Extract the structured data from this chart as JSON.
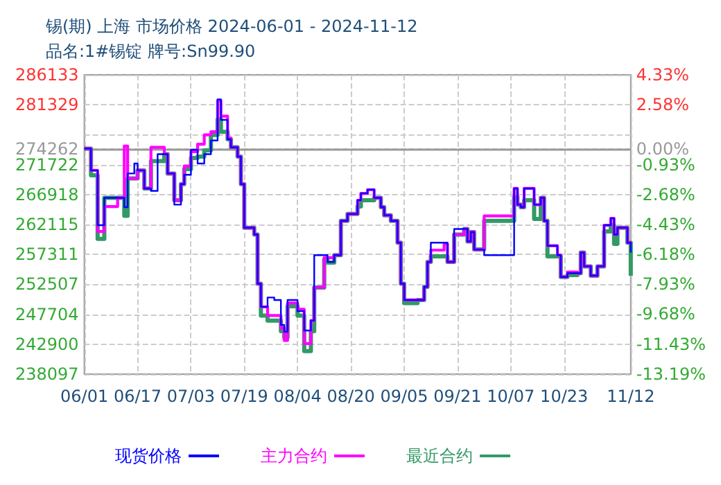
{
  "chart_data": {
    "type": "step",
    "title": "锡(期) 上海 市场价格 2024-06-01 - 2024-11-12",
    "subtitle": "品名:1#锡锭 牌号:Sn99.90",
    "x": [
      "2024-06-01",
      "2024-06-03",
      "2024-06-05",
      "2024-06-07",
      "2024-06-11",
      "2024-06-13",
      "2024-06-14",
      "2024-06-16",
      "2024-06-17",
      "2024-06-19",
      "2024-06-21",
      "2024-06-23",
      "2024-06-25",
      "2024-06-26",
      "2024-06-28",
      "2024-06-30",
      "2024-07-01",
      "2024-07-03",
      "2024-07-05",
      "2024-07-07",
      "2024-07-09",
      "2024-07-11",
      "2024-07-12",
      "2024-07-14",
      "2024-07-15",
      "2024-07-17",
      "2024-07-18",
      "2024-07-19",
      "2024-07-22",
      "2024-07-23",
      "2024-07-24",
      "2024-07-26",
      "2024-07-28",
      "2024-07-30",
      "2024-07-31",
      "2024-08-01",
      "2024-08-04",
      "2024-08-06",
      "2024-08-08",
      "2024-08-09",
      "2024-08-12",
      "2024-08-13",
      "2024-08-15",
      "2024-08-17",
      "2024-08-19",
      "2024-08-22",
      "2024-08-23",
      "2024-08-25",
      "2024-08-27",
      "2024-08-29",
      "2024-08-30",
      "2024-09-01",
      "2024-09-03",
      "2024-09-04",
      "2024-09-05",
      "2024-09-09",
      "2024-09-11",
      "2024-09-12",
      "2024-09-13",
      "2024-09-17",
      "2024-09-18",
      "2024-09-20",
      "2024-09-23",
      "2024-09-24",
      "2024-09-25",
      "2024-09-26",
      "2024-09-29",
      "2024-10-07",
      "2024-10-08",
      "2024-10-09",
      "2024-10-10",
      "2024-10-11",
      "2024-10-13",
      "2024-10-14",
      "2024-10-16",
      "2024-10-17",
      "2024-10-18",
      "2024-10-21",
      "2024-10-22",
      "2024-10-24",
      "2024-10-27",
      "2024-10-28",
      "2024-10-29",
      "2024-10-31",
      "2024-11-02",
      "2024-11-04",
      "2024-11-06",
      "2024-11-07",
      "2024-11-08",
      "2024-11-10",
      "2024-11-11",
      "2024-11-12"
    ],
    "series": [
      {
        "name": "现货价格",
        "color": "#0000ff",
        "values": [
          274300,
          270800,
          262000,
          266400,
          266400,
          264900,
          270300,
          271900,
          270800,
          267900,
          267500,
          273400,
          273400,
          270300,
          265300,
          268600,
          270100,
          274100,
          271900,
          273400,
          275600,
          282200,
          278900,
          275800,
          274500,
          273000,
          268600,
          261600,
          260500,
          252600,
          248900,
          250400,
          250000,
          246000,
          244900,
          250000,
          248200,
          245100,
          246700,
          257200,
          257200,
          256100,
          257200,
          262700,
          263800,
          266000,
          267100,
          267700,
          266400,
          264900,
          263600,
          262700,
          259200,
          252600,
          250000,
          250000,
          252100,
          256100,
          259200,
          259200,
          256100,
          261400,
          261400,
          259400,
          260900,
          258100,
          257200,
          257200,
          267900,
          265300,
          264900,
          267900,
          267900,
          265300,
          266400,
          262700,
          258700,
          257200,
          253700,
          254300,
          254300,
          257600,
          255400,
          253900,
          255400,
          262000,
          263100,
          260500,
          261600,
          261600,
          259200,
          257600
        ]
      },
      {
        "name": "主力合约",
        "color": "#ff00ff",
        "values": [
          274300,
          270800,
          261000,
          265000,
          266400,
          274700,
          269500,
          269500,
          270800,
          267900,
          274500,
          274500,
          273400,
          270300,
          266000,
          268600,
          271500,
          273800,
          275000,
          276500,
          277000,
          282000,
          279500,
          276000,
          274500,
          273000,
          268600,
          261600,
          260500,
          252600,
          248900,
          247500,
          247500,
          245500,
          243500,
          249500,
          248500,
          243000,
          246700,
          252000,
          256800,
          256800,
          257200,
          262700,
          263800,
          266000,
          267100,
          267700,
          266400,
          264900,
          263600,
          262700,
          259200,
          252600,
          250000,
          250000,
          252100,
          256100,
          258000,
          259000,
          256100,
          260500,
          261400,
          259400,
          260900,
          258100,
          263500,
          263500,
          267900,
          265300,
          264900,
          267900,
          267900,
          265300,
          266400,
          262700,
          258700,
          257200,
          253700,
          254500,
          254300,
          257600,
          255400,
          253900,
          255400,
          262000,
          263100,
          260500,
          261600,
          261600,
          259200,
          259000
        ]
      },
      {
        "name": "最近合约",
        "color": "#339966",
        "values": [
          274300,
          270000,
          259800,
          266400,
          266400,
          263500,
          269500,
          269500,
          270800,
          267900,
          272300,
          272300,
          273400,
          270300,
          266000,
          268600,
          271000,
          272800,
          273000,
          274000,
          276500,
          279000,
          277000,
          275800,
          274500,
          273000,
          268600,
          261600,
          260500,
          252600,
          247500,
          246700,
          246700,
          245000,
          244000,
          249000,
          247500,
          241800,
          245000,
          252000,
          256500,
          256000,
          257200,
          262700,
          263800,
          265000,
          266000,
          266000,
          266400,
          264900,
          263600,
          262700,
          259200,
          252600,
          249500,
          250000,
          252100,
          256100,
          257000,
          257000,
          256100,
          260500,
          261400,
          259400,
          260900,
          258100,
          262700,
          262700,
          266500,
          265300,
          264900,
          266000,
          266000,
          263000,
          266400,
          262700,
          257000,
          257000,
          253700,
          254000,
          254300,
          257600,
          255400,
          253900,
          255400,
          261000,
          262000,
          259000,
          261600,
          261600,
          259200,
          253900
        ]
      }
    ],
    "xlim": [
      "2024-06-01",
      "2024-11-12"
    ],
    "xticks": [
      {
        "value": "2024-06-01",
        "label": "06/01"
      },
      {
        "value": "2024-06-17",
        "label": "06/17"
      },
      {
        "value": "2024-07-03",
        "label": "07/03"
      },
      {
        "value": "2024-07-19",
        "label": "07/19"
      },
      {
        "value": "2024-08-04",
        "label": "08/04"
      },
      {
        "value": "2024-08-20",
        "label": "08/20"
      },
      {
        "value": "2024-09-05",
        "label": "09/05"
      },
      {
        "value": "2024-09-21",
        "label": "09/21"
      },
      {
        "value": "2024-10-07",
        "label": "10/07"
      },
      {
        "value": "2024-10-23",
        "label": "10/23"
      },
      {
        "value": "2024-11-12",
        "label": "11/12"
      }
    ],
    "ylim": [
      238097,
      286133
    ],
    "yticks": [
      238097,
      242900,
      247704,
      252507,
      257311,
      262115,
      266918,
      271722,
      274262,
      {
        "value": 276525,
        "label": null
      },
      281329,
      286133
    ],
    "y2lim": [
      -13.19,
      4.33
    ],
    "y2ticks": [
      {
        "value": -13.19,
        "label": "-13.19%"
      },
      {
        "value": -11.43,
        "label": "-11.43%"
      },
      {
        "value": -9.68,
        "label": "-9.68%"
      },
      {
        "value": -7.93,
        "label": "-7.93%"
      },
      {
        "value": -6.18,
        "label": "-6.18%"
      },
      {
        "value": -4.43,
        "label": "-4.43%"
      },
      {
        "value": -2.68,
        "label": "-2.68%"
      },
      {
        "value": -0.93,
        "label": "-0.93%"
      },
      {
        "value": 0,
        "label": "0.00%"
      },
      {
        "value": 0.83,
        "label": null
      },
      {
        "value": 2.58,
        "label": "2.58%"
      },
      {
        "value": 4.33,
        "label": "4.33%"
      }
    ],
    "ref_lines": [
      {
        "axis": "y",
        "value": 274262,
        "color": "#999999"
      }
    ],
    "grid": true,
    "legend": "bottom",
    "marker": "none",
    "line_style": "solid"
  }
}
